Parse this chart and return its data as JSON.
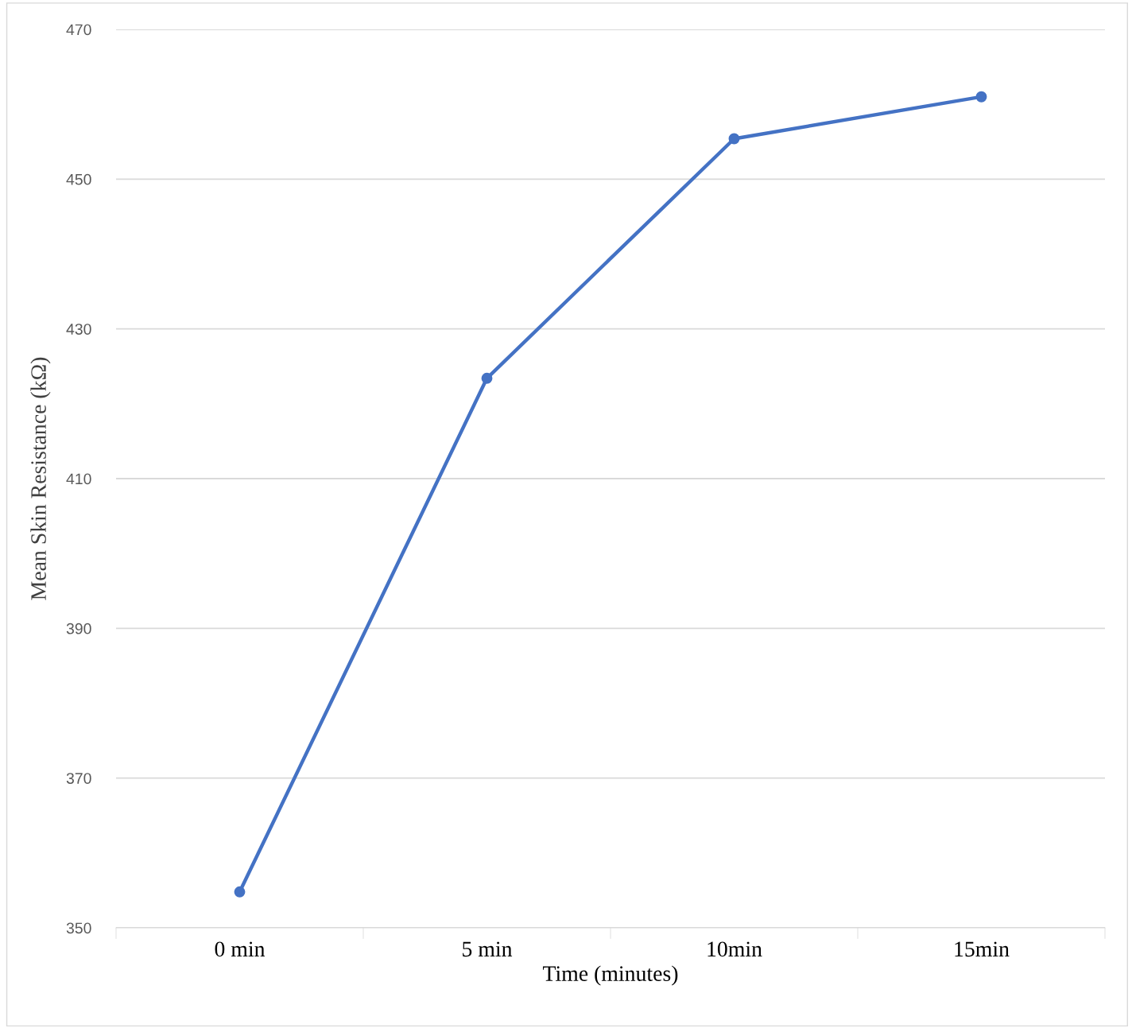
{
  "chart_data": {
    "type": "line",
    "xlabel": "Time (minutes)",
    "ylabel": "Mean Skin Resistance (kΩ)",
    "categories": [
      "0 min",
      "5 min",
      "10min",
      "15min"
    ],
    "series": [
      {
        "color": "#4472c4",
        "values": [
          354.8,
          423.4,
          455.4,
          461.0
        ]
      }
    ],
    "ylim": [
      350,
      470
    ],
    "yticks": [
      350,
      370,
      390,
      410,
      430,
      450,
      470
    ],
    "grid": "y",
    "marker": "circle",
    "line_style": "solid",
    "legend": false
  }
}
